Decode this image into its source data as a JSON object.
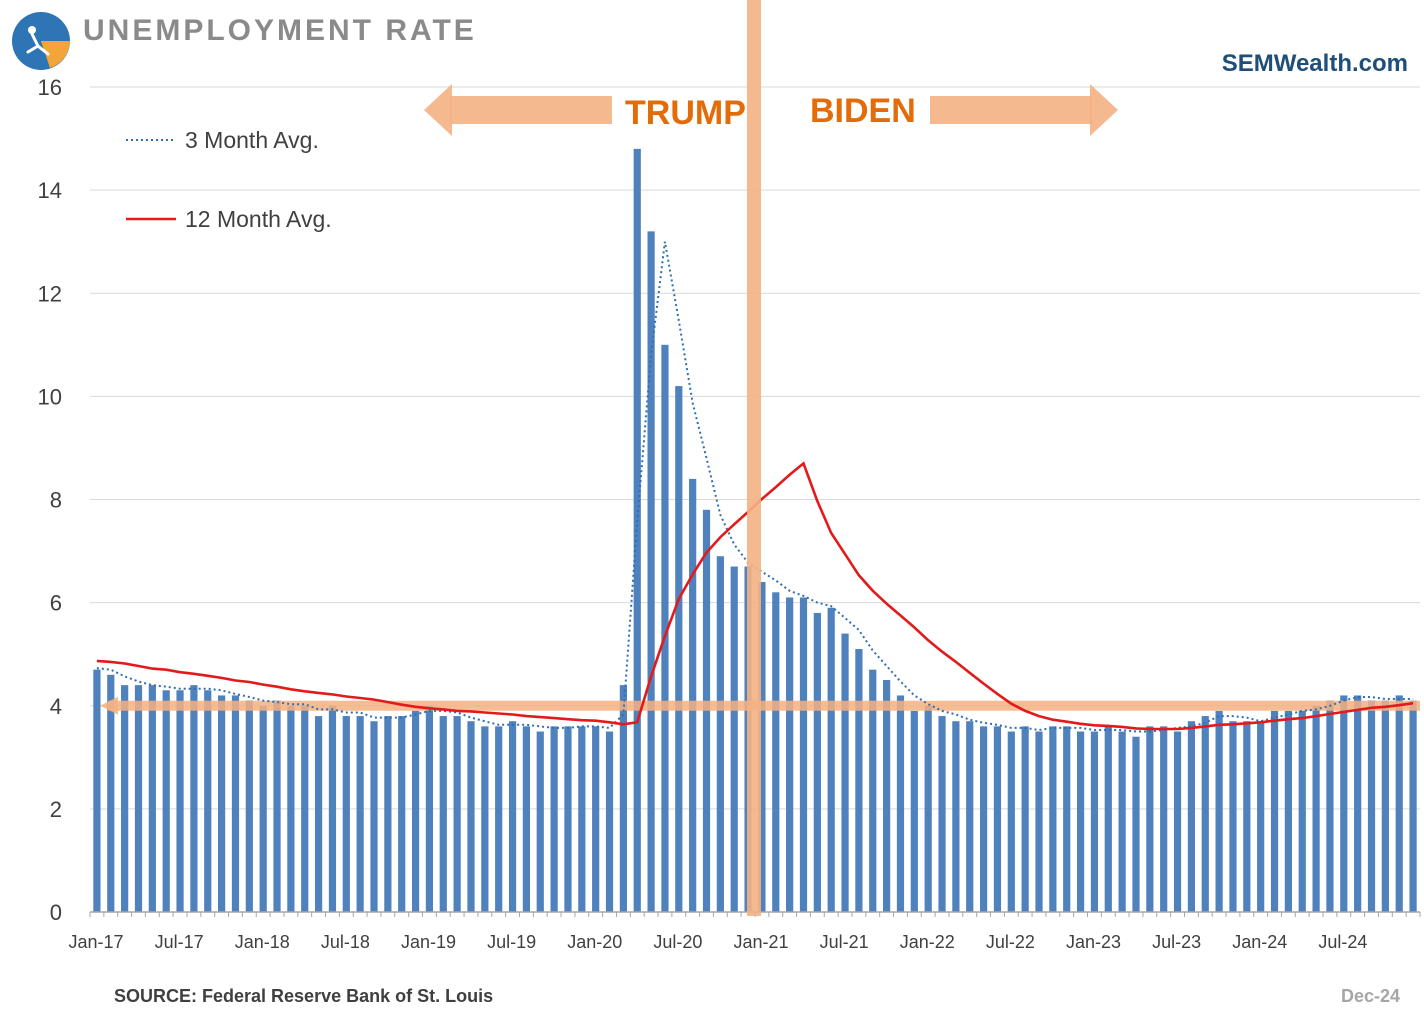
{
  "header": {
    "title": "UNEMPLOYMENT RATE",
    "brand": "SEMWealth.com"
  },
  "footer": {
    "source": "SOURCE:  Federal Reserve Bank of St. Louis",
    "date": "Dec-24"
  },
  "colors": {
    "bars": "#4f81bd",
    "avg12": "#e31a1c",
    "avg3": "#2e6eb5",
    "highlight": "#f4b183",
    "highlight_text": "#e36c09",
    "grid": "#d9d9d9",
    "axis_text": "#404040"
  },
  "chart_data": {
    "type": "bar",
    "title": "UNEMPLOYMENT RATE",
    "xlabel": "",
    "ylabel": "",
    "ylim": [
      0,
      16
    ],
    "yticks": [
      0,
      2,
      4,
      6,
      8,
      10,
      12,
      14,
      16
    ],
    "grid": true,
    "x_tick_labels": [
      "Jan-17",
      "Jul-17",
      "Jan-18",
      "Jul-18",
      "Jan-19",
      "Jul-19",
      "Jan-20",
      "Jul-20",
      "Jan-21",
      "Jul-21",
      "Jan-22",
      "Jul-22",
      "Jan-23",
      "Jul-23",
      "Jan-24",
      "Jul-24"
    ],
    "x_tick_step": 6,
    "categories": [
      "Jan-17",
      "Feb-17",
      "Mar-17",
      "Apr-17",
      "May-17",
      "Jun-17",
      "Jul-17",
      "Aug-17",
      "Sep-17",
      "Oct-17",
      "Nov-17",
      "Dec-17",
      "Jan-18",
      "Feb-18",
      "Mar-18",
      "Apr-18",
      "May-18",
      "Jun-18",
      "Jul-18",
      "Aug-18",
      "Sep-18",
      "Oct-18",
      "Nov-18",
      "Dec-18",
      "Jan-19",
      "Feb-19",
      "Mar-19",
      "Apr-19",
      "May-19",
      "Jun-19",
      "Jul-19",
      "Aug-19",
      "Sep-19",
      "Oct-19",
      "Nov-19",
      "Dec-19",
      "Jan-20",
      "Feb-20",
      "Mar-20",
      "Apr-20",
      "May-20",
      "Jun-20",
      "Jul-20",
      "Aug-20",
      "Sep-20",
      "Oct-20",
      "Nov-20",
      "Dec-20",
      "Jan-21",
      "Feb-21",
      "Mar-21",
      "Apr-21",
      "May-21",
      "Jun-21",
      "Jul-21",
      "Aug-21",
      "Sep-21",
      "Oct-21",
      "Nov-21",
      "Dec-21",
      "Jan-22",
      "Feb-22",
      "Mar-22",
      "Apr-22",
      "May-22",
      "Jun-22",
      "Jul-22",
      "Aug-22",
      "Sep-22",
      "Oct-22",
      "Nov-22",
      "Dec-22",
      "Jan-23",
      "Feb-23",
      "Mar-23",
      "Apr-23",
      "May-23",
      "Jun-23",
      "Jul-23",
      "Aug-23",
      "Sep-23",
      "Oct-23",
      "Nov-23",
      "Dec-23",
      "Jan-24",
      "Feb-24",
      "Mar-24",
      "Apr-24",
      "May-24",
      "Jun-24",
      "Jul-24",
      "Aug-24",
      "Sep-24",
      "Oct-24",
      "Nov-24",
      "Dec-24"
    ],
    "series": [
      {
        "name": "Unemployment Rate",
        "kind": "bar",
        "values": [
          4.7,
          4.6,
          4.4,
          4.4,
          4.4,
          4.3,
          4.3,
          4.4,
          4.3,
          4.2,
          4.2,
          4.1,
          4.0,
          4.1,
          4.0,
          4.0,
          3.8,
          4.0,
          3.8,
          3.8,
          3.7,
          3.8,
          3.8,
          3.9,
          4.0,
          3.8,
          3.8,
          3.7,
          3.6,
          3.6,
          3.7,
          3.6,
          3.5,
          3.6,
          3.6,
          3.6,
          3.6,
          3.5,
          4.4,
          14.8,
          13.2,
          11.0,
          10.2,
          8.4,
          7.8,
          6.9,
          6.7,
          6.7,
          6.4,
          6.2,
          6.1,
          6.1,
          5.8,
          5.9,
          5.4,
          5.1,
          4.7,
          4.5,
          4.2,
          3.9,
          4.0,
          3.8,
          3.7,
          3.7,
          3.6,
          3.6,
          3.5,
          3.6,
          3.5,
          3.6,
          3.6,
          3.5,
          3.5,
          3.6,
          3.5,
          3.4,
          3.6,
          3.6,
          3.5,
          3.7,
          3.8,
          3.9,
          3.7,
          3.7,
          3.7,
          3.9,
          3.9,
          3.9,
          4.0,
          4.1,
          4.2,
          4.2,
          4.1,
          4.1,
          4.2,
          4.1
        ]
      },
      {
        "name": "3 Month Avg.",
        "kind": "line-dotted",
        "values": [
          4.73,
          4.7,
          4.57,
          4.47,
          4.4,
          4.37,
          4.33,
          4.33,
          4.33,
          4.3,
          4.23,
          4.17,
          4.1,
          4.07,
          4.03,
          4.03,
          3.93,
          3.93,
          3.87,
          3.87,
          3.77,
          3.77,
          3.77,
          3.83,
          3.9,
          3.9,
          3.87,
          3.77,
          3.7,
          3.63,
          3.63,
          3.63,
          3.6,
          3.57,
          3.57,
          3.6,
          3.6,
          3.57,
          3.83,
          7.57,
          10.8,
          13.0,
          11.47,
          9.87,
          8.8,
          7.7,
          7.13,
          6.77,
          6.6,
          6.43,
          6.23,
          6.13,
          6.0,
          5.93,
          5.7,
          5.47,
          5.07,
          4.77,
          4.47,
          4.2,
          4.03,
          3.9,
          3.83,
          3.73,
          3.67,
          3.63,
          3.57,
          3.57,
          3.53,
          3.57,
          3.57,
          3.57,
          3.53,
          3.53,
          3.53,
          3.5,
          3.5,
          3.53,
          3.57,
          3.6,
          3.67,
          3.8,
          3.8,
          3.77,
          3.7,
          3.77,
          3.83,
          3.9,
          3.93,
          4.0,
          4.1,
          4.17,
          4.17,
          4.13,
          4.13,
          4.13
        ]
      },
      {
        "name": "12 Month Avg.",
        "kind": "line",
        "values": [
          4.87,
          4.85,
          4.82,
          4.77,
          4.72,
          4.7,
          4.65,
          4.62,
          4.58,
          4.54,
          4.49,
          4.46,
          4.41,
          4.37,
          4.32,
          4.28,
          4.25,
          4.22,
          4.18,
          4.15,
          4.12,
          4.07,
          4.02,
          3.98,
          3.95,
          3.93,
          3.9,
          3.89,
          3.87,
          3.85,
          3.83,
          3.8,
          3.78,
          3.76,
          3.74,
          3.72,
          3.71,
          3.68,
          3.64,
          3.68,
          4.57,
          5.35,
          6.07,
          6.55,
          6.97,
          7.27,
          7.52,
          7.76,
          8.01,
          8.24,
          8.48,
          8.7,
          7.97,
          7.35,
          6.94,
          6.53,
          6.23,
          5.98,
          5.75,
          5.52,
          5.27,
          5.05,
          4.85,
          4.64,
          4.43,
          4.23,
          4.04,
          3.9,
          3.8,
          3.73,
          3.69,
          3.65,
          3.62,
          3.61,
          3.59,
          3.56,
          3.55,
          3.55,
          3.55,
          3.57,
          3.6,
          3.63,
          3.64,
          3.66,
          3.68,
          3.71,
          3.74,
          3.76,
          3.8,
          3.84,
          3.88,
          3.92,
          3.96,
          3.98,
          4.01,
          4.05
        ]
      }
    ],
    "legend": {
      "position": "top-left",
      "entries": [
        "3 Month Avg.",
        "12 Month Avg."
      ]
    },
    "annotations": {
      "reference_line_value": 4.0,
      "divider_category": "Jan-21",
      "left_label": "TRUMP",
      "right_label": "BIDEN"
    }
  }
}
